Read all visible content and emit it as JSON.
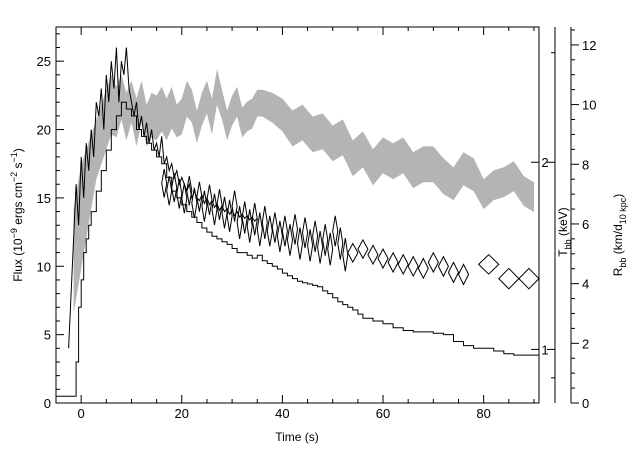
{
  "chart_data": {
    "type": "line",
    "title": "",
    "xlabel": "Time (s)",
    "ylabel_left": {
      "base": "Flux (10",
      "exp1": "−9",
      "mid": " ergs cm",
      "exp2": "−2",
      "mid2": " s",
      "exp3": "−1",
      "end": ")"
    },
    "ylabel_right_T": {
      "base": "T",
      "sub": "bb",
      "end": " (keV)"
    },
    "ylabel_right_R": {
      "base": "R",
      "sub": "bb",
      "mid": " (km/d",
      "sub2": "10 kpc",
      "end": ")"
    },
    "xlim": [
      -5,
      91
    ],
    "ylim_left": [
      0,
      27.5
    ],
    "ylim_R": [
      0,
      12.6
    ],
    "ylim_T_log": [
      0.82,
      3.3
    ],
    "x_ticks": [
      "0",
      "20",
      "40",
      "60",
      "80"
    ],
    "y_left_ticks": [
      "0",
      "5",
      "10",
      "15",
      "20",
      "25"
    ],
    "y_R_ticks": [
      "0",
      "2",
      "4",
      "6",
      "8",
      "10",
      "12"
    ],
    "y_T_ticks": [
      "1",
      "2"
    ],
    "flux_fine_series": {
      "x": [
        -2.5,
        -2,
        -1.5,
        -1,
        -0.5,
        0,
        0.5,
        1,
        1.5,
        2,
        2.5,
        3,
        3.5,
        4,
        4.5,
        5,
        5.5,
        6,
        6.5,
        7,
        7.5,
        8,
        8.5,
        9,
        9.5,
        10,
        10.5,
        11,
        11.5,
        12,
        12.5,
        13,
        13.5,
        14,
        14.5,
        15,
        15.5,
        16,
        16.5,
        17,
        17.5,
        18,
        18.5,
        19,
        19.5,
        20,
        20.5,
        21,
        21.5,
        22,
        22.5,
        23,
        23.5,
        24,
        24.5,
        25,
        25.5,
        26,
        26.5,
        27,
        27.5,
        28,
        28.5,
        29,
        29.5,
        30,
        30.5,
        31,
        31.5,
        32,
        32.5,
        33,
        33.5,
        34,
        34.5,
        35
      ],
      "y": [
        4,
        8,
        12,
        16,
        13,
        18,
        15,
        19,
        17,
        20,
        18,
        22,
        21,
        23,
        20,
        24,
        22,
        25,
        23,
        26,
        22,
        25,
        24,
        26,
        23,
        22,
        21,
        22,
        20,
        21,
        19.5,
        20.5,
        19,
        20,
        18.5,
        19,
        18,
        19.5,
        17.5,
        18,
        17,
        17.5,
        16.5,
        17,
        16,
        16.5,
        16,
        15.5,
        16,
        15,
        15.5,
        15,
        14.8,
        15.2,
        14.6,
        15,
        14.5,
        14.8,
        14.3,
        14.6,
        14.1,
        14.4,
        14,
        14.2,
        13.8,
        14.1,
        13.7,
        14,
        13.6,
        13.8,
        13.5,
        13.7,
        13.4,
        13.6,
        13.3,
        13.5
      ]
    },
    "flux_step_series": {
      "x": [
        -5,
        -1.5,
        -1,
        -0.5,
        0,
        0.5,
        1,
        1.5,
        2,
        3,
        4,
        5,
        6,
        7,
        8,
        9,
        10,
        11,
        12,
        13,
        14,
        15,
        16,
        17,
        18,
        19,
        20,
        21,
        22,
        23,
        24,
        25,
        26,
        27,
        28,
        29,
        30,
        31,
        32,
        33,
        34,
        35,
        36,
        37,
        38,
        39,
        40,
        41,
        42,
        43,
        44,
        45,
        46,
        47,
        48,
        49,
        50,
        51,
        52,
        53,
        54,
        55,
        56,
        58,
        60,
        62,
        64,
        66,
        68,
        70,
        72,
        74,
        76,
        78,
        80,
        82,
        84,
        86,
        88,
        90
      ],
      "y": [
        0.5,
        0.5,
        3,
        7,
        9,
        11,
        12,
        13,
        14,
        15.5,
        17,
        18.5,
        20,
        21,
        22,
        21.5,
        21,
        20,
        19.5,
        19,
        18.5,
        18,
        17.5,
        16.5,
        15.5,
        15,
        14.5,
        14,
        13.6,
        13.2,
        12.8,
        12.5,
        12.2,
        12,
        11.8,
        11.6,
        11.3,
        11,
        11,
        10.8,
        10.6,
        10.8,
        10.4,
        10.2,
        10,
        9.8,
        9.5,
        9.3,
        9.1,
        8.9,
        8.8,
        8.7,
        8.6,
        8.5,
        8.2,
        8,
        7.7,
        7.4,
        7.2,
        7,
        6.8,
        6.5,
        6.2,
        6,
        5.8,
        5.5,
        5.3,
        5.2,
        5.2,
        5.1,
        5,
        4.5,
        4.2,
        4,
        4,
        3.8,
        3.6,
        3.5,
        3.5,
        3.5
      ]
    },
    "R_band_series": {
      "x": [
        -1.5,
        0,
        1,
        2,
        3,
        4,
        5,
        6,
        7,
        8,
        9,
        10,
        11,
        12,
        13,
        14,
        15,
        16,
        17,
        18,
        19,
        20,
        21,
        22,
        23,
        24,
        25,
        26,
        27,
        28,
        29,
        30,
        31,
        32,
        33,
        34,
        35,
        36,
        38,
        40,
        42,
        44,
        46,
        48,
        50,
        52,
        54,
        56,
        58,
        60,
        62,
        64,
        66,
        68,
        70,
        72,
        74,
        76,
        78,
        80,
        82,
        84,
        86,
        88,
        90
      ],
      "upper": [
        6.5,
        8,
        8.5,
        9,
        9.5,
        10,
        10.5,
        11,
        10.6,
        11,
        10.4,
        10.8,
        10.2,
        10.8,
        10,
        10.4,
        10.3,
        10.6,
        10.2,
        10.6,
        10,
        10.2,
        10.8,
        10.5,
        9.8,
        10.4,
        10.8,
        10.2,
        11.2,
        10.5,
        9.8,
        10.3,
        10.6,
        9.9,
        10.1,
        10.2,
        10.5,
        10.5,
        10.4,
        10.2,
        9.8,
        10,
        9.6,
        9.7,
        9.3,
        9.5,
        8.8,
        9.1,
        8.5,
        8.9,
        8.7,
        8.9,
        8.4,
        8.6,
        8.6,
        8.2,
        7.9,
        8.4,
        8.2,
        7.5,
        7.8,
        7.9,
        8.1,
        7.6,
        7.4
      ],
      "lower": [
        3,
        4.5,
        5.5,
        6.5,
        7.5,
        8,
        8.5,
        9,
        8.9,
        9.5,
        8.8,
        9.4,
        8.6,
        9.4,
        8.6,
        8.9,
        8.8,
        9.1,
        8.8,
        9.2,
        8.9,
        9.0,
        9.6,
        9.4,
        8.7,
        9.3,
        9.7,
        9.0,
        10.0,
        9.5,
        8.8,
        9.3,
        9.6,
        8.9,
        9.1,
        9.2,
        9.6,
        9.6,
        9.4,
        9.1,
        8.6,
        8.8,
        8.4,
        8.5,
        8.1,
        8.3,
        7.6,
        7.9,
        7.3,
        7.7,
        7.5,
        7.7,
        7.2,
        7.4,
        7.4,
        7.0,
        6.8,
        7.3,
        7.1,
        6.5,
        6.8,
        6.9,
        7.1,
        6.6,
        6.4
      ]
    },
    "T_points_series": {
      "x": [
        16.5,
        17.5,
        18.5,
        19.5,
        20.5,
        21.5,
        22.5,
        23.5,
        24.5,
        25.5,
        26.5,
        27.5,
        28.5,
        29.5,
        30.5,
        31.5,
        32.5,
        33.5,
        34.5,
        35.5,
        36.5,
        37.5,
        38.5,
        39.5,
        40.5,
        41.5,
        42.5,
        43.5,
        44.5,
        45.5,
        46.5,
        47.5,
        48.5,
        49.5,
        50.5,
        51.5,
        52.5,
        54,
        56,
        58,
        60,
        62,
        64,
        66,
        68,
        70,
        72,
        74,
        76,
        81,
        85,
        89
      ],
      "y": [
        1.85,
        1.8,
        1.82,
        1.78,
        1.75,
        1.8,
        1.72,
        1.76,
        1.7,
        1.74,
        1.68,
        1.71,
        1.66,
        1.64,
        1.7,
        1.6,
        1.63,
        1.58,
        1.62,
        1.56,
        1.6,
        1.55,
        1.57,
        1.52,
        1.55,
        1.5,
        1.56,
        1.48,
        1.54,
        1.47,
        1.52,
        1.46,
        1.5,
        1.45,
        1.55,
        1.48,
        1.42,
        1.43,
        1.45,
        1.42,
        1.4,
        1.38,
        1.37,
        1.36,
        1.35,
        1.38,
        1.36,
        1.33,
        1.32,
        1.37,
        1.3,
        1.3
      ],
      "xerr": [
        0.5,
        0.5,
        0.5,
        0.5,
        0.5,
        0.5,
        0.5,
        0.5,
        0.5,
        0.5,
        0.5,
        0.5,
        0.5,
        0.5,
        0.5,
        0.5,
        0.5,
        0.5,
        0.5,
        0.5,
        0.5,
        0.5,
        0.5,
        0.5,
        0.5,
        0.5,
        0.5,
        0.5,
        0.5,
        0.5,
        0.5,
        0.5,
        0.5,
        0.5,
        0.5,
        0.5,
        0.5,
        1,
        1,
        1,
        1,
        1,
        1,
        1,
        1,
        1,
        1,
        1,
        1,
        2,
        2,
        2
      ],
      "yerr": [
        0.1,
        0.1,
        0.1,
        0.1,
        0.1,
        0.1,
        0.1,
        0.1,
        0.1,
        0.1,
        0.1,
        0.1,
        0.1,
        0.1,
        0.1,
        0.1,
        0.1,
        0.1,
        0.1,
        0.1,
        0.1,
        0.09,
        0.09,
        0.09,
        0.09,
        0.09,
        0.09,
        0.09,
        0.09,
        0.09,
        0.09,
        0.09,
        0.09,
        0.09,
        0.09,
        0.09,
        0.09,
        0.05,
        0.05,
        0.05,
        0.05,
        0.05,
        0.05,
        0.05,
        0.05,
        0.05,
        0.05,
        0.05,
        0.05,
        0.05,
        0.05,
        0.05
      ]
    },
    "colors": {
      "axes": "#000000",
      "band": "#b4b4b4",
      "lines": "#000000",
      "background": "#ffffff"
    },
    "grid": false,
    "legend": "none"
  }
}
